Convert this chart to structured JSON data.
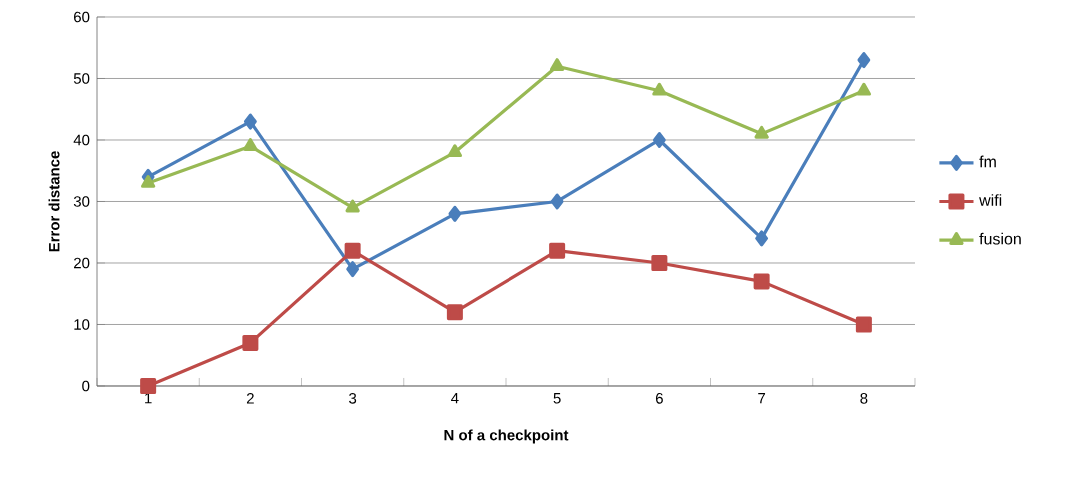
{
  "chart_data": {
    "type": "line",
    "xlabel": "N of a checkpoint",
    "ylabel": "Error distance",
    "categories": [
      "1",
      "2",
      "3",
      "4",
      "5",
      "6",
      "7",
      "8"
    ],
    "series": [
      {
        "name": "fm",
        "color": "#4a7ebb",
        "marker": "diamond",
        "values": [
          34,
          43,
          19,
          28,
          30,
          40,
          24,
          53
        ]
      },
      {
        "name": "wifi",
        "color": "#be4b48",
        "marker": "square",
        "values": [
          0,
          7,
          22,
          12,
          22,
          20,
          17,
          10
        ]
      },
      {
        "name": "fusion",
        "color": "#98b954",
        "marker": "triangle",
        "values": [
          33,
          39,
          29,
          38,
          52,
          48,
          41,
          48
        ]
      }
    ],
    "ylim": [
      0,
      60
    ],
    "yticks": [
      0,
      10,
      20,
      30,
      40,
      50,
      60
    ],
    "grid": "y",
    "legend": "right",
    "line_style": "solid"
  }
}
